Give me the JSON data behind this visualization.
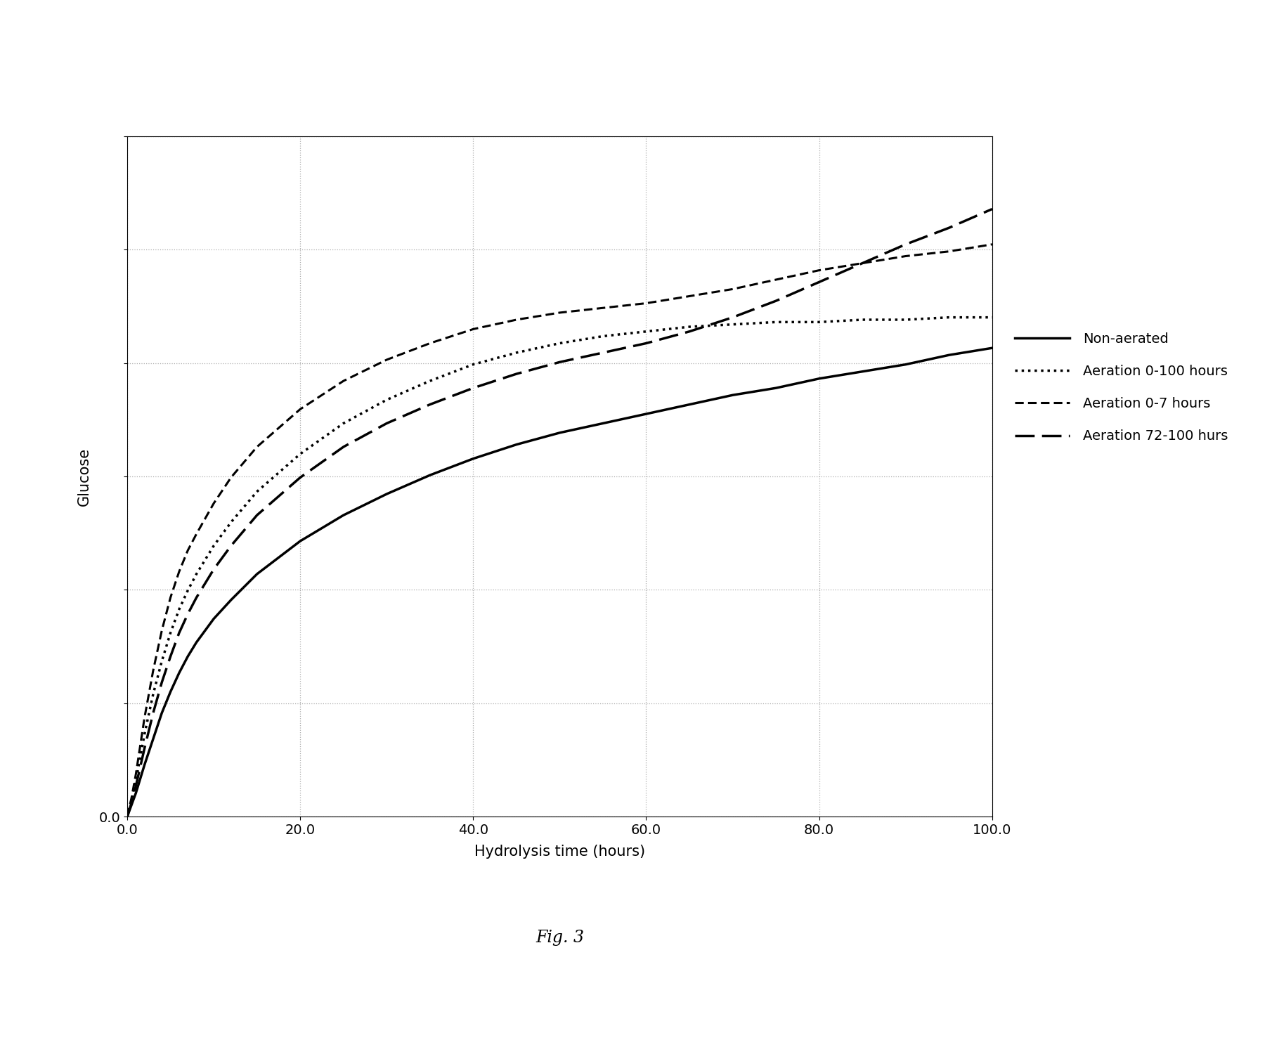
{
  "xlabel": "Hydrolysis time (hours)",
  "ylabel": "Glucose",
  "xlim": [
    0.0,
    100.0
  ],
  "xticks": [
    0.0,
    20.0,
    40.0,
    60.0,
    80.0,
    100.0
  ],
  "fig_caption": "Fig. 3",
  "series": [
    {
      "label": "Non-aerated",
      "linestyle": "solid",
      "linewidth": 2.5,
      "color": "#000000",
      "x": [
        0,
        0.5,
        1,
        1.5,
        2,
        3,
        4,
        5,
        6,
        7,
        8,
        10,
        12,
        15,
        20,
        25,
        30,
        35,
        40,
        45,
        50,
        55,
        60,
        65,
        70,
        75,
        80,
        85,
        90,
        95,
        100
      ],
      "y": [
        0.0,
        0.05,
        0.1,
        0.16,
        0.22,
        0.33,
        0.44,
        0.53,
        0.61,
        0.68,
        0.74,
        0.84,
        0.92,
        1.03,
        1.17,
        1.28,
        1.37,
        1.45,
        1.52,
        1.58,
        1.63,
        1.67,
        1.71,
        1.75,
        1.79,
        1.82,
        1.86,
        1.89,
        1.92,
        1.96,
        1.99
      ]
    },
    {
      "label": "Aeration 0-100 hours",
      "linestyle": "dotted",
      "linewidth": 2.5,
      "color": "#000000",
      "x": [
        0,
        0.5,
        1,
        1.5,
        2,
        3,
        4,
        5,
        6,
        7,
        8,
        10,
        12,
        15,
        20,
        25,
        30,
        35,
        40,
        45,
        50,
        55,
        60,
        65,
        70,
        75,
        80,
        85,
        90,
        95,
        100
      ],
      "y": [
        0.0,
        0.07,
        0.15,
        0.25,
        0.35,
        0.52,
        0.66,
        0.78,
        0.88,
        0.96,
        1.03,
        1.15,
        1.25,
        1.38,
        1.54,
        1.67,
        1.77,
        1.85,
        1.92,
        1.97,
        2.01,
        2.04,
        2.06,
        2.08,
        2.09,
        2.1,
        2.1,
        2.11,
        2.11,
        2.12,
        2.12
      ]
    },
    {
      "label": "Aeration 0-7 hours",
      "linestyle": "dashed_short",
      "linewidth": 2.2,
      "color": "#000000",
      "x": [
        0,
        0.5,
        1,
        1.5,
        2,
        3,
        4,
        5,
        6,
        7,
        8,
        10,
        12,
        15,
        20,
        25,
        30,
        35,
        40,
        45,
        50,
        55,
        60,
        65,
        70,
        75,
        80,
        85,
        90,
        95,
        100
      ],
      "y": [
        0.0,
        0.08,
        0.18,
        0.3,
        0.42,
        0.62,
        0.79,
        0.93,
        1.04,
        1.13,
        1.2,
        1.33,
        1.44,
        1.57,
        1.73,
        1.85,
        1.94,
        2.01,
        2.07,
        2.11,
        2.14,
        2.16,
        2.18,
        2.21,
        2.24,
        2.28,
        2.32,
        2.35,
        2.38,
        2.4,
        2.43
      ]
    },
    {
      "label": "Aeration 72-100 hurs",
      "linestyle": "dashed_long",
      "linewidth": 2.5,
      "color": "#000000",
      "x": [
        0,
        0.5,
        1,
        1.5,
        2,
        3,
        4,
        5,
        6,
        7,
        8,
        10,
        12,
        15,
        20,
        25,
        30,
        35,
        40,
        45,
        50,
        55,
        60,
        65,
        70,
        75,
        80,
        85,
        90,
        95,
        100
      ],
      "y": [
        0.0,
        0.06,
        0.13,
        0.21,
        0.29,
        0.44,
        0.57,
        0.68,
        0.78,
        0.86,
        0.93,
        1.05,
        1.15,
        1.28,
        1.44,
        1.57,
        1.67,
        1.75,
        1.82,
        1.88,
        1.93,
        1.97,
        2.01,
        2.06,
        2.12,
        2.19,
        2.27,
        2.35,
        2.43,
        2.5,
        2.58
      ]
    }
  ],
  "background_color": "#ffffff",
  "grid_color": "#999999",
  "legend_fontsize": 14,
  "axis_label_fontsize": 15,
  "tick_fontsize": 14,
  "caption_fontsize": 17
}
